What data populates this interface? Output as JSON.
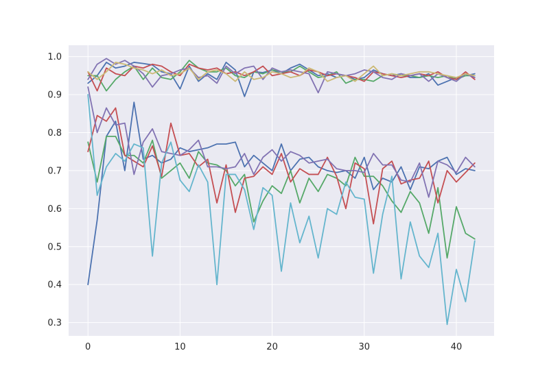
{
  "chart_data": {
    "type": "line",
    "title": "",
    "xlabel": "",
    "ylabel": "",
    "xlim": [
      -2.1,
      44.1
    ],
    "ylim": [
      0.265,
      1.03
    ],
    "grid": true,
    "background": "#EAEAF2",
    "x_ticks": [
      0,
      10,
      20,
      30,
      40
    ],
    "y_ticks": [
      0.3,
      0.4,
      0.5,
      0.6,
      0.7,
      0.8,
      0.9,
      1.0
    ],
    "x_tick_labels": [
      "0",
      "10",
      "20",
      "30",
      "40"
    ],
    "y_tick_labels": [
      "0.3",
      "0.4",
      "0.5",
      "0.6",
      "0.7",
      "0.8",
      "0.9",
      "1.0"
    ],
    "x": [
      0,
      1,
      2,
      3,
      4,
      5,
      6,
      7,
      8,
      9,
      10,
      11,
      12,
      13,
      14,
      15,
      16,
      17,
      18,
      19,
      20,
      21,
      22,
      23,
      24,
      25,
      26,
      27,
      28,
      29,
      30,
      31,
      32,
      33,
      34,
      35,
      36,
      37,
      38,
      39,
      40,
      41,
      42
    ],
    "series": [
      {
        "color": "#4C72B0",
        "values": [
          0.93,
          0.95,
          0.985,
          0.97,
          0.975,
          0.985,
          0.982,
          0.978,
          0.96,
          0.955,
          0.915,
          0.975,
          0.935,
          0.955,
          0.94,
          0.985,
          0.965,
          0.895,
          0.96,
          0.958,
          0.965,
          0.955,
          0.97,
          0.98,
          0.965,
          0.95,
          0.955,
          0.945,
          0.95,
          0.94,
          0.945,
          0.965,
          0.955,
          0.95,
          0.955,
          0.945,
          0.945,
          0.955,
          0.925,
          0.935,
          0.945,
          0.95,
          0.955
        ]
      },
      {
        "color": "#55A868",
        "values": [
          0.95,
          0.95,
          0.91,
          0.94,
          0.96,
          0.975,
          0.94,
          0.97,
          0.945,
          0.94,
          0.96,
          0.99,
          0.97,
          0.96,
          0.96,
          0.97,
          0.95,
          0.945,
          0.96,
          0.955,
          0.965,
          0.96,
          0.96,
          0.975,
          0.96,
          0.945,
          0.95,
          0.96,
          0.93,
          0.94,
          0.94,
          0.935,
          0.95,
          0.955,
          0.95,
          0.95,
          0.945,
          0.95,
          0.945,
          0.95,
          0.94,
          0.95,
          0.95
        ]
      },
      {
        "color": "#C44E52",
        "values": [
          0.96,
          0.91,
          0.97,
          0.955,
          0.95,
          0.975,
          0.97,
          0.98,
          0.975,
          0.96,
          0.95,
          0.98,
          0.97,
          0.965,
          0.97,
          0.955,
          0.96,
          0.95,
          0.96,
          0.975,
          0.95,
          0.955,
          0.96,
          0.95,
          0.965,
          0.96,
          0.95,
          0.955,
          0.95,
          0.945,
          0.935,
          0.96,
          0.955,
          0.95,
          0.945,
          0.95,
          0.955,
          0.95,
          0.96,
          0.945,
          0.94,
          0.96,
          0.94
        ]
      },
      {
        "color": "#8172B2",
        "values": [
          0.94,
          0.98,
          0.995,
          0.98,
          0.99,
          0.975,
          0.955,
          0.92,
          0.95,
          0.955,
          0.965,
          0.97,
          0.945,
          0.95,
          0.93,
          0.975,
          0.955,
          0.97,
          0.975,
          0.94,
          0.97,
          0.96,
          0.965,
          0.96,
          0.955,
          0.905,
          0.96,
          0.955,
          0.95,
          0.955,
          0.965,
          0.96,
          0.945,
          0.94,
          0.955,
          0.95,
          0.955,
          0.935,
          0.955,
          0.945,
          0.935,
          0.955,
          0.945
        ]
      },
      {
        "color": "#CCB974",
        "values": [
          0.96,
          0.94,
          0.96,
          0.985,
          0.98,
          0.97,
          0.965,
          0.955,
          0.965,
          0.95,
          0.955,
          0.97,
          0.94,
          0.96,
          0.965,
          0.955,
          0.935,
          0.96,
          0.94,
          0.945,
          0.96,
          0.955,
          0.945,
          0.95,
          0.97,
          0.96,
          0.935,
          0.945,
          0.95,
          0.935,
          0.955,
          0.975,
          0.95,
          0.955,
          0.95,
          0.955,
          0.96,
          0.96,
          0.955,
          0.95,
          0.945,
          0.955,
          0.95
        ]
      },
      {
        "color": "#4C72B0",
        "values": [
          0.4,
          0.57,
          0.79,
          0.83,
          0.7,
          0.88,
          0.73,
          0.74,
          0.72,
          0.73,
          0.76,
          0.75,
          0.755,
          0.76,
          0.77,
          0.77,
          0.775,
          0.71,
          0.74,
          0.72,
          0.7,
          0.77,
          0.7,
          0.73,
          0.735,
          0.71,
          0.7,
          0.695,
          0.7,
          0.68,
          0.735,
          0.65,
          0.68,
          0.67,
          0.71,
          0.65,
          0.71,
          0.705,
          0.725,
          0.735,
          0.69,
          0.705,
          0.7
        ]
      },
      {
        "color": "#55A868",
        "values": [
          0.775,
          0.67,
          0.79,
          0.79,
          0.74,
          0.74,
          0.72,
          0.78,
          0.68,
          0.7,
          0.72,
          0.68,
          0.75,
          0.72,
          0.715,
          0.7,
          0.66,
          0.69,
          0.565,
          0.62,
          0.66,
          0.64,
          0.7,
          0.615,
          0.68,
          0.645,
          0.69,
          0.68,
          0.66,
          0.735,
          0.685,
          0.685,
          0.66,
          0.62,
          0.59,
          0.645,
          0.615,
          0.535,
          0.655,
          0.47,
          0.605,
          0.535,
          0.52
        ]
      },
      {
        "color": "#C44E52",
        "values": [
          0.75,
          0.845,
          0.83,
          0.865,
          0.74,
          0.725,
          0.71,
          0.765,
          0.685,
          0.825,
          0.74,
          0.745,
          0.71,
          0.73,
          0.615,
          0.715,
          0.59,
          0.68,
          0.685,
          0.71,
          0.69,
          0.745,
          0.67,
          0.705,
          0.69,
          0.69,
          0.735,
          0.685,
          0.6,
          0.72,
          0.705,
          0.56,
          0.705,
          0.725,
          0.665,
          0.675,
          0.68,
          0.725,
          0.615,
          0.7,
          0.67,
          0.695,
          0.72
        ]
      },
      {
        "color": "#8172B2",
        "values": [
          0.92,
          0.8,
          0.865,
          0.82,
          0.825,
          0.69,
          0.775,
          0.81,
          0.75,
          0.745,
          0.74,
          0.755,
          0.78,
          0.71,
          0.71,
          0.705,
          0.71,
          0.745,
          0.69,
          0.735,
          0.755,
          0.725,
          0.75,
          0.74,
          0.72,
          0.725,
          0.73,
          0.705,
          0.7,
          0.7,
          0.695,
          0.745,
          0.715,
          0.715,
          0.675,
          0.67,
          0.72,
          0.63,
          0.725,
          0.715,
          0.695,
          0.735,
          0.71
        ]
      },
      {
        "color": "#64B5CD",
        "values": [
          0.9,
          0.635,
          0.71,
          0.745,
          0.725,
          0.77,
          0.76,
          0.475,
          0.72,
          0.775,
          0.675,
          0.645,
          0.715,
          0.67,
          0.4,
          0.69,
          0.69,
          0.65,
          0.545,
          0.655,
          0.635,
          0.435,
          0.615,
          0.51,
          0.58,
          0.47,
          0.6,
          0.585,
          0.67,
          0.63,
          0.625,
          0.43,
          0.585,
          0.685,
          0.415,
          0.565,
          0.475,
          0.445,
          0.535,
          0.295,
          0.44,
          0.355,
          0.515
        ]
      }
    ]
  }
}
